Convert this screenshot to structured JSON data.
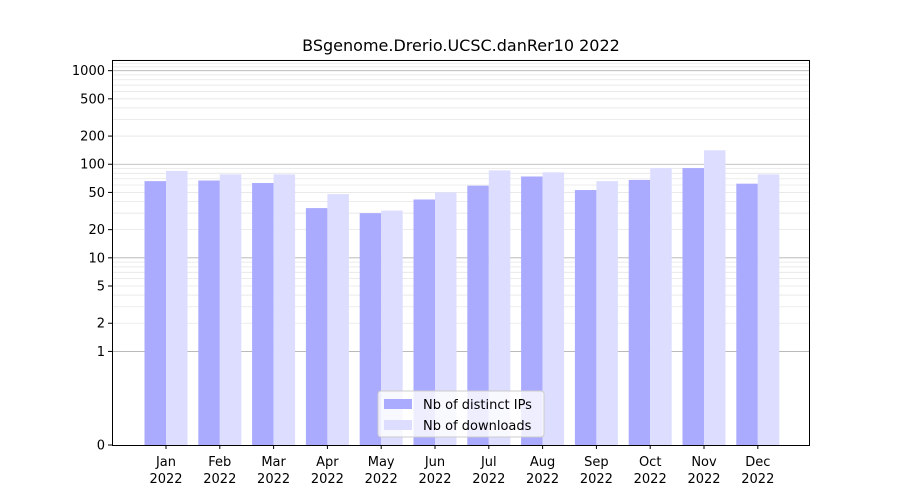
{
  "chart_data": {
    "type": "bar",
    "title": "BSgenome.Drerio.UCSC.danRer10 2022",
    "xlabel": "",
    "ylabel": "",
    "y_scale": "symlog",
    "ylim": [
      0,
      1300
    ],
    "y_ticks": [
      0,
      1,
      2,
      5,
      10,
      20,
      50,
      100,
      200,
      500,
      1000
    ],
    "y_tick_labels": [
      "0",
      "1",
      "2",
      "5",
      "10",
      "20",
      "50",
      "100",
      "200",
      "500",
      "1000"
    ],
    "grid": true,
    "legend_position": "bottom-center",
    "categories": [
      [
        "Jan",
        "2022"
      ],
      [
        "Feb",
        "2022"
      ],
      [
        "Mar",
        "2022"
      ],
      [
        "Apr",
        "2022"
      ],
      [
        "May",
        "2022"
      ],
      [
        "Jun",
        "2022"
      ],
      [
        "Jul",
        "2022"
      ],
      [
        "Aug",
        "2022"
      ],
      [
        "Sep",
        "2022"
      ],
      [
        "Oct",
        "2022"
      ],
      [
        "Nov",
        "2022"
      ],
      [
        "Dec",
        "2022"
      ]
    ],
    "series": [
      {
        "name": "Nb of distinct IPs",
        "color": "#aaaaff",
        "values": [
          66,
          67,
          63,
          34,
          30,
          42,
          59,
          74,
          53,
          68,
          91,
          62
        ]
      },
      {
        "name": "Nb of downloads",
        "color": "#ddddff",
        "values": [
          85,
          78,
          78,
          48,
          32,
          50,
          86,
          82,
          66,
          91,
          141,
          78
        ]
      }
    ]
  }
}
